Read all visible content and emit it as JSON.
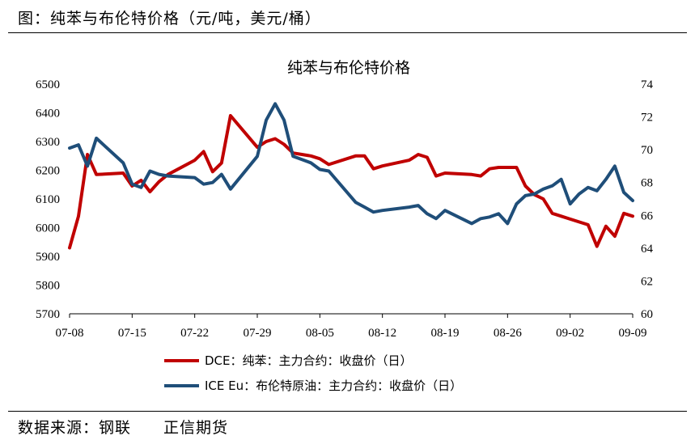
{
  "figure_title": "图：纯苯与布伦特价格（元/吨，美元/桶）",
  "source": {
    "label": "数据来源：钢联",
    "company": "正信期货"
  },
  "colors": {
    "dce": "#C00000",
    "brent": "#1F4E79"
  },
  "chart_data": {
    "type": "line",
    "title": "纯苯与布伦特价格",
    "x_tick_labels": [
      "07-08",
      "07-15",
      "07-22",
      "07-29",
      "08-05",
      "08-12",
      "08-19",
      "08-26",
      "09-02",
      "09-09"
    ],
    "x_range": [
      0,
      63
    ],
    "y_left": {
      "range": [
        5700,
        6500
      ],
      "ticks": [
        5700,
        5800,
        5900,
        6000,
        6100,
        6200,
        6300,
        6400,
        6500
      ]
    },
    "y_right": {
      "range": [
        60,
        74
      ],
      "ticks": [
        60,
        62,
        64,
        66,
        68,
        70,
        72,
        74
      ]
    },
    "grid": false,
    "legend_position": "bottom",
    "series": [
      {
        "name": "DCE：纯苯：主力合约：收盘价（日）",
        "axis": "left",
        "color": "#C00000",
        "x": [
          0,
          1,
          2,
          3,
          6,
          7,
          8,
          9,
          10,
          11,
          14,
          15,
          16,
          17,
          18,
          21,
          22,
          23,
          24,
          25,
          26,
          27,
          28,
          29,
          32,
          33,
          34,
          35,
          38,
          39,
          40,
          41,
          42,
          45,
          46,
          47,
          48,
          49,
          50,
          51,
          52,
          53,
          54,
          55,
          56,
          57,
          58,
          59,
          60,
          61,
          62,
          63
        ],
        "y": [
          5930,
          6040,
          6255,
          6185,
          6190,
          6145,
          6165,
          6125,
          6160,
          6185,
          6235,
          6265,
          6195,
          6225,
          6390,
          6280,
          6300,
          6310,
          6290,
          6260,
          6255,
          6250,
          6240,
          6220,
          6250,
          6250,
          6205,
          6215,
          6235,
          6255,
          6245,
          6180,
          6190,
          6185,
          6180,
          6205,
          6210,
          6210,
          6210,
          6145,
          6115,
          6100,
          6050,
          6040,
          6030,
          6020,
          6010,
          5935,
          6005,
          5970,
          6050,
          6040
        ]
      },
      {
        "name": "ICE Eu：布伦特原油：主力合约：收盘价（日）",
        "axis": "right",
        "color": "#1F4E79",
        "x": [
          0,
          1,
          2,
          3,
          6,
          7,
          8,
          9,
          10,
          11,
          14,
          15,
          16,
          17,
          18,
          21,
          22,
          23,
          24,
          25,
          26,
          27,
          28,
          29,
          32,
          33,
          34,
          35,
          38,
          39,
          40,
          41,
          42,
          45,
          46,
          47,
          48,
          49,
          50,
          51,
          52,
          53,
          54,
          55,
          56,
          57,
          58,
          59,
          60,
          61,
          62,
          63
        ],
        "y": [
          70.1,
          70.3,
          69.0,
          70.7,
          69.2,
          67.9,
          67.7,
          68.7,
          68.5,
          68.4,
          68.3,
          67.9,
          68.0,
          68.5,
          67.6,
          69.6,
          71.8,
          72.8,
          71.8,
          69.6,
          69.4,
          69.2,
          68.8,
          68.7,
          66.8,
          66.5,
          66.2,
          66.3,
          66.5,
          66.6,
          66.1,
          65.8,
          66.3,
          65.5,
          65.8,
          65.9,
          66.1,
          65.5,
          66.7,
          67.2,
          67.3,
          67.6,
          67.8,
          68.2,
          66.7,
          67.3,
          67.7,
          67.5,
          68.2,
          69.0,
          67.4,
          66.9
        ]
      }
    ]
  }
}
